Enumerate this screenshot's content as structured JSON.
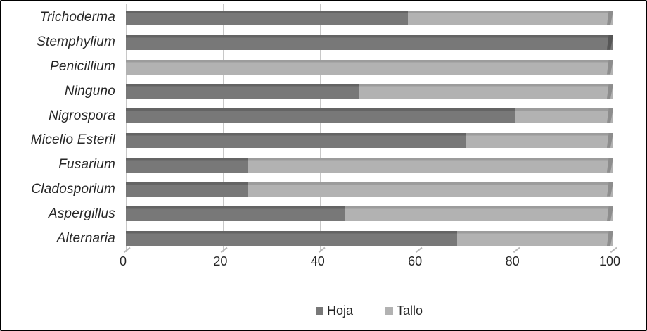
{
  "chart_data": {
    "type": "bar",
    "orientation": "horizontal",
    "stacked": true,
    "title": "",
    "xlabel": "",
    "ylabel": "",
    "xlim": [
      0,
      100
    ],
    "x_ticks": [
      0,
      20,
      40,
      60,
      80,
      100
    ],
    "grid": "vertical",
    "legend_position": "bottom",
    "categories": [
      "Trichoderma",
      "Stemphylium",
      "Penicillium",
      "Ninguno",
      "Nigrospora",
      "Micelio Esteril",
      "Fusarium",
      "Cladosporium",
      "Aspergillus",
      "Alternaria"
    ],
    "series": [
      {
        "name": "Hoja",
        "color": "#787878",
        "top_color": "#646464",
        "edge_color": "#565656",
        "values": [
          58,
          100,
          0,
          48,
          80,
          70,
          25,
          25,
          45,
          68
        ]
      },
      {
        "name": "Tallo",
        "color": "#b2b2b2",
        "top_color": "#9c9c9c",
        "edge_color": "#8d8d8d",
        "values": [
          42,
          0,
          100,
          52,
          20,
          30,
          75,
          75,
          55,
          32
        ]
      }
    ],
    "colors": {
      "gridline": "#c8c8c8",
      "text": "#262626",
      "figure_border": "#000000",
      "background": "#ffffff"
    }
  }
}
